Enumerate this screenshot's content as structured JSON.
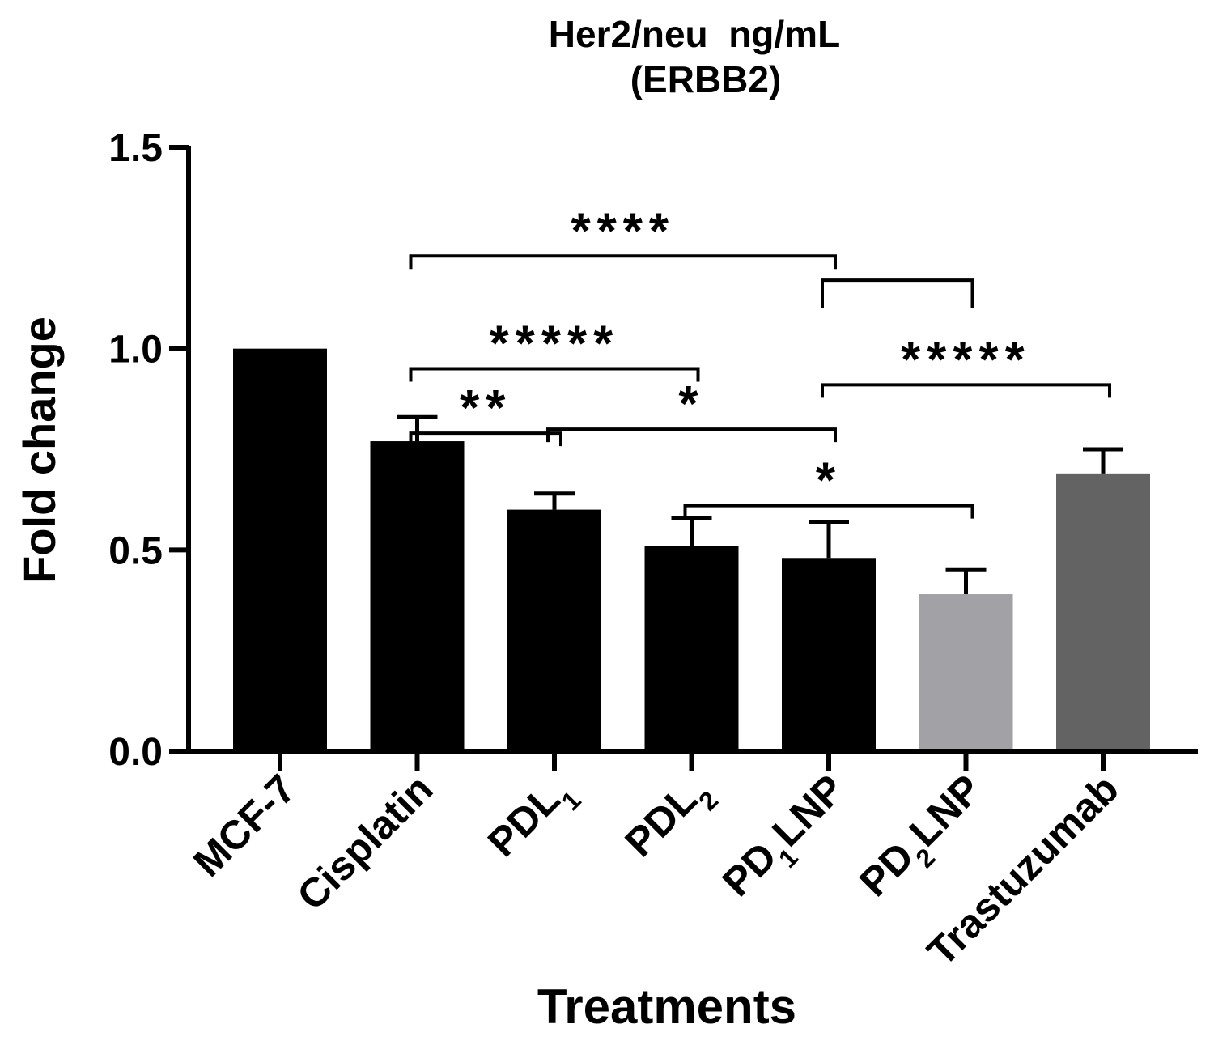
{
  "chart_data": {
    "type": "bar",
    "title_line1": "Her2/neu  ng/mL",
    "title_line2": "(ERBB2)",
    "xlabel": "Treatments",
    "ylabel": "Fold change",
    "ylim": [
      0,
      1.5
    ],
    "yticks": [
      0.0,
      0.5,
      1.0,
      1.5
    ],
    "ytick_labels": [
      "0.0",
      "0.5",
      "1.0",
      "1.5"
    ],
    "categories": [
      {
        "label": "MCF-7",
        "base": "MCF-7",
        "sub": "",
        "suffix": ""
      },
      {
        "label": "Cisplatin",
        "base": "Cisplatin",
        "sub": "",
        "suffix": ""
      },
      {
        "label": "PDL1",
        "base": "PDL",
        "sub": "1",
        "suffix": ""
      },
      {
        "label": "PDL2",
        "base": "PDL",
        "sub": "2",
        "suffix": ""
      },
      {
        "label": "PD1LNP",
        "base": "PD",
        "sub": "1",
        "suffix": "LNP"
      },
      {
        "label": "PD2LNP",
        "base": "PD",
        "sub": "2",
        "suffix": "LNP"
      },
      {
        "label": "Trastuzumab",
        "base": "Trastuzumab",
        "sub": "",
        "suffix": ""
      }
    ],
    "values": [
      1.0,
      0.77,
      0.6,
      0.51,
      0.48,
      0.39,
      0.69
    ],
    "errors": [
      0,
      0.06,
      0.04,
      0.07,
      0.09,
      0.06,
      0.06
    ],
    "colors": [
      "#000000",
      "#000000",
      "#000000",
      "#000000",
      "#000000",
      "#a2a1a6",
      "#636363"
    ],
    "significance": [
      {
        "from": 1,
        "to": 4,
        "y": 1.23,
        "label": "****"
      },
      {
        "from": 4,
        "to": 5,
        "y": 1.17,
        "label": "",
        "open_down": true
      },
      {
        "from": 1,
        "to": 3,
        "y": 0.95,
        "label": "*****"
      },
      {
        "from": 4,
        "to": 6,
        "y": 0.91,
        "label": "*****"
      },
      {
        "from": 1,
        "to": 2,
        "y": 0.79,
        "label": "**"
      },
      {
        "from": 2,
        "to": 4,
        "y": 0.8,
        "label": "*"
      },
      {
        "from": 3,
        "to": 5,
        "y": 0.61,
        "label": "*"
      }
    ]
  }
}
